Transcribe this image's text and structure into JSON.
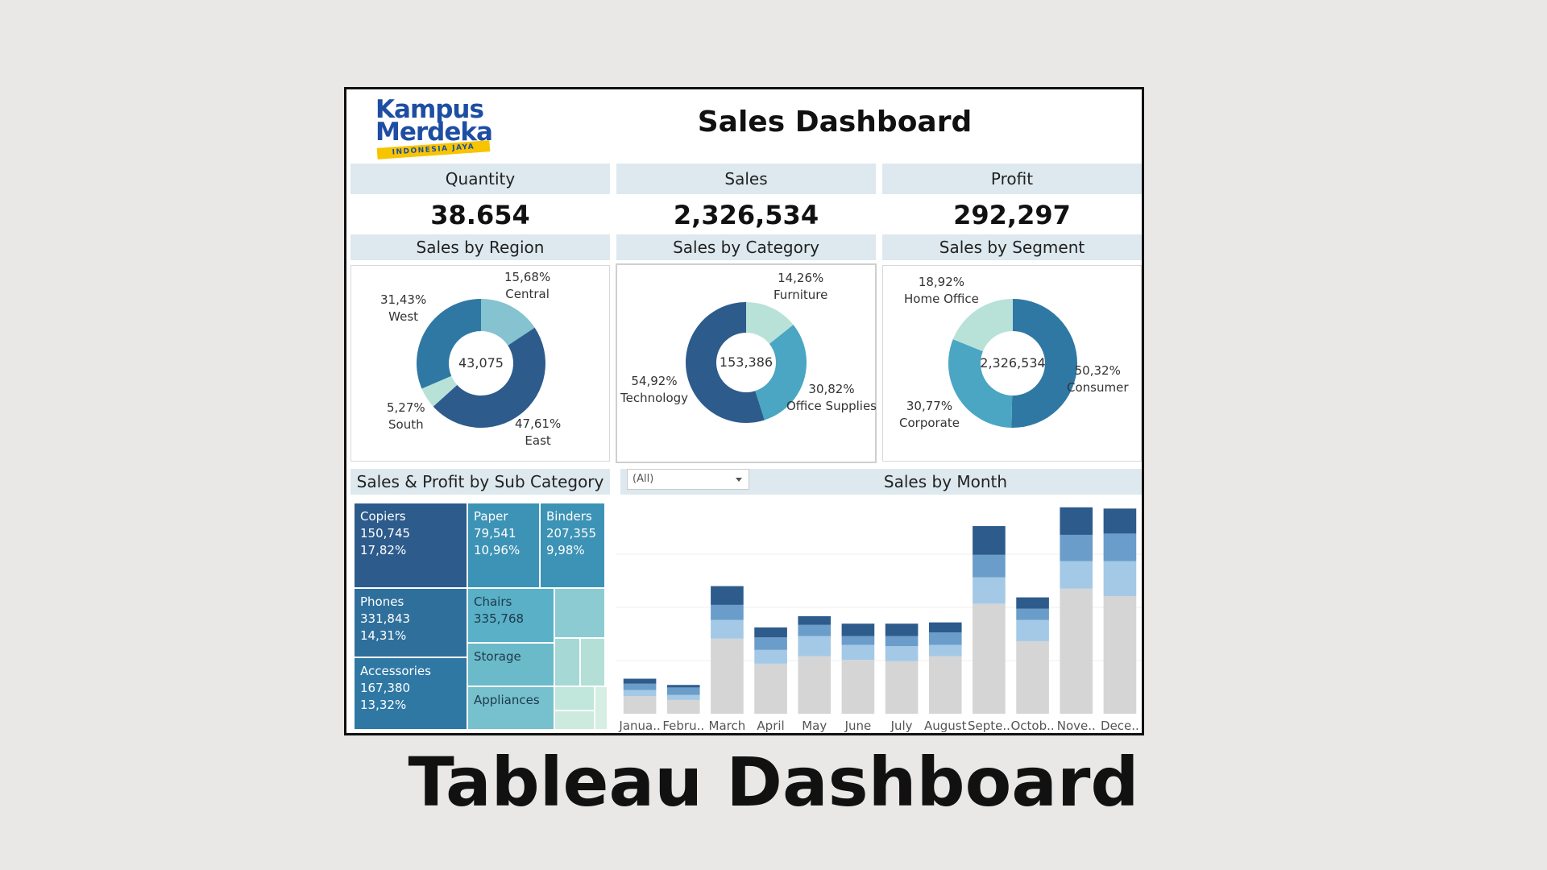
{
  "logo": {
    "line1": "Kampus",
    "line2": "Merdeka",
    "tagline": "INDONESIA JAYA"
  },
  "dashboard": {
    "title": "Sales Dashboard"
  },
  "kpis": [
    {
      "label": "Quantity",
      "value": "38.654"
    },
    {
      "label": "Sales",
      "value": "2,326,534"
    },
    {
      "label": "Profit",
      "value": "292,297"
    }
  ],
  "section_titles": {
    "region": "Sales by Region",
    "category": "Sales by Category",
    "segment": "Sales by Segment",
    "subcategory": "Sales & Profit by Sub Category",
    "month": "Sales by Month"
  },
  "month_filter": {
    "value": "(All)"
  },
  "colors": {
    "dark": "#2d5b8c",
    "mid_dark": "#2f78a4",
    "mid": "#4aa6c2",
    "light": "#84c3cf",
    "pale": "#b8e2d8",
    "bar1": "#2d5b8c",
    "bar2": "#6a9dc9",
    "bar3": "#a3c9e6",
    "bar4": "#d5d5d5",
    "header": "#dde9ef"
  },
  "caption": "Tableau Dashboard",
  "chart_data": [
    {
      "type": "pie",
      "name": "Sales by Region",
      "center_label": "43,075",
      "slices": [
        {
          "label": "Central",
          "pct_label": "15,68%",
          "value": 15.68,
          "color": "#84c3cf"
        },
        {
          "label": "East",
          "pct_label": "47,61%",
          "value": 47.61,
          "color": "#2d5b8c"
        },
        {
          "label": "South",
          "pct_label": "5,27%",
          "value": 5.27,
          "color": "#b8e2d8"
        },
        {
          "label": "West",
          "pct_label": "31,43%",
          "value": 31.43,
          "color": "#2f78a4"
        }
      ]
    },
    {
      "type": "pie",
      "name": "Sales by Category",
      "center_label": "153,386",
      "slices": [
        {
          "label": "Furniture",
          "pct_label": "14,26%",
          "value": 14.26,
          "color": "#b8e2d8"
        },
        {
          "label": "Office Supplies",
          "pct_label": "30,82%",
          "value": 30.82,
          "color": "#4aa6c2"
        },
        {
          "label": "Technology",
          "pct_label": "54,92%",
          "value": 54.92,
          "color": "#2d5b8c"
        }
      ]
    },
    {
      "type": "pie",
      "name": "Sales by Segment",
      "center_label": "2,326,534",
      "slices": [
        {
          "label": "Consumer",
          "pct_label": "50,32%",
          "value": 50.32,
          "color": "#2f78a4"
        },
        {
          "label": "Corporate",
          "pct_label": "30,77%",
          "value": 30.77,
          "color": "#4aa6c2"
        },
        {
          "label": "Home Office",
          "pct_label": "18,92%",
          "value": 18.92,
          "color": "#b8e2d8"
        }
      ]
    },
    {
      "type": "treemap",
      "name": "Sales & Profit by Sub Category",
      "tiles": [
        {
          "label": "Copiers",
          "sales": "150,745",
          "profit_pct": "17,82%",
          "color": "#2d5b8c"
        },
        {
          "label": "Phones",
          "sales": "331,843",
          "profit_pct": "14,31%",
          "color": "#2f6f9c"
        },
        {
          "label": "Accessories",
          "sales": "167,380",
          "profit_pct": "13,32%",
          "color": "#2f78a4"
        },
        {
          "label": "Paper",
          "sales": "79,541",
          "profit_pct": "10,96%",
          "color": "#3d93b5"
        },
        {
          "label": "Binders",
          "sales": "207,355",
          "profit_pct": "9,98%",
          "color": "#3d93b5"
        },
        {
          "label": "Chairs",
          "sales": "335,768",
          "profit_pct": "",
          "color": "#5ab0c6"
        },
        {
          "label": "Storage",
          "sales": "",
          "profit_pct": "",
          "color": "#6bbac9"
        },
        {
          "label": "Appliances",
          "sales": "",
          "profit_pct": "",
          "color": "#76c1cd"
        }
      ]
    },
    {
      "type": "bar",
      "name": "Sales by Month",
      "stacked": true,
      "categories": [
        "Janua..",
        "Febru..",
        "March",
        "April",
        "May",
        "June",
        "July",
        "August",
        "Septe..",
        "Octob..",
        "Nove..",
        "Dece.."
      ],
      "series": [
        {
          "values": [
            14,
            11,
            60,
            40,
            46,
            43,
            42,
            46,
            88,
            58,
            100,
            94
          ],
          "color": "#d5d5d5"
        },
        {
          "values": [
            5,
            4,
            15,
            11,
            16,
            12,
            12,
            9,
            21,
            17,
            22,
            28
          ],
          "color": "#a3c9e6"
        },
        {
          "values": [
            5,
            6,
            12,
            10,
            9,
            7,
            8,
            10,
            18,
            9,
            21,
            22
          ],
          "color": "#6a9dc9"
        },
        {
          "values": [
            4,
            2,
            15,
            8,
            7,
            10,
            10,
            8,
            23,
            9,
            22,
            20
          ],
          "color": "#2d5b8c"
        }
      ],
      "ylim": [
        0,
        170
      ]
    }
  ]
}
